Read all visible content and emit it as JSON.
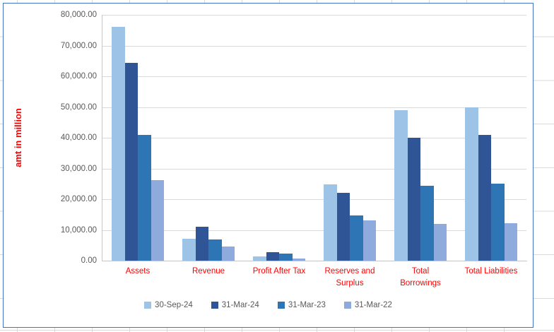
{
  "sheet": {
    "background": "#FFFFFF",
    "gridline_color": "#D9D9D9"
  },
  "chart": {
    "border_color": "#4472C4",
    "background": "#FFFFFF",
    "plot": {
      "gridline_color": "#D9D9D9",
      "axis_line_color": "#C6C6C6"
    },
    "y_axis": {
      "title": "amt in million",
      "title_color": "#FF0000",
      "tick_labels": [
        "0.00",
        "10,000.00",
        "20,000.00",
        "30,000.00",
        "40,000.00",
        "50,000.00",
        "60,000.00",
        "70,000.00",
        "80,000.00"
      ],
      "tick_label_color": "#595959"
    },
    "x_axis": {
      "label_color": "#FF0000",
      "display_labels": [
        "Assets",
        "Revenue",
        "Profit After Tax",
        "Reserves and\nSurplus",
        "Total\nBorrowings",
        "Total Liabilities"
      ]
    },
    "legend": {
      "text_color": "#595959",
      "position": "bottom"
    }
  },
  "chart_data": {
    "type": "bar",
    "title": "",
    "xlabel": "",
    "ylabel": "amt in million",
    "categories": [
      "Assets",
      "Revenue",
      "Profit After Tax",
      "Reserves and Surplus",
      "Total Borrowings",
      "Total Liabilities"
    ],
    "series": [
      {
        "name": "30-Sep-24",
        "color": "#9DC3E6",
        "values": [
          76000,
          7200,
          1300,
          24800,
          49000,
          50000
        ]
      },
      {
        "name": "31-Mar-24",
        "color": "#2F5597",
        "values": [
          64300,
          11000,
          2700,
          22000,
          40000,
          41000
        ]
      },
      {
        "name": "31-Mar-23",
        "color": "#2E75B6",
        "values": [
          41000,
          7000,
          2200,
          14800,
          24400,
          25000
        ]
      },
      {
        "name": "31-Mar-22",
        "color": "#8FAADC",
        "values": [
          26300,
          4500,
          800,
          13000,
          12000,
          12300
        ]
      }
    ],
    "ylim": [
      0,
      80000
    ],
    "ytick_step": 10000,
    "grid": "horizontal-only",
    "legend_position": "bottom"
  }
}
